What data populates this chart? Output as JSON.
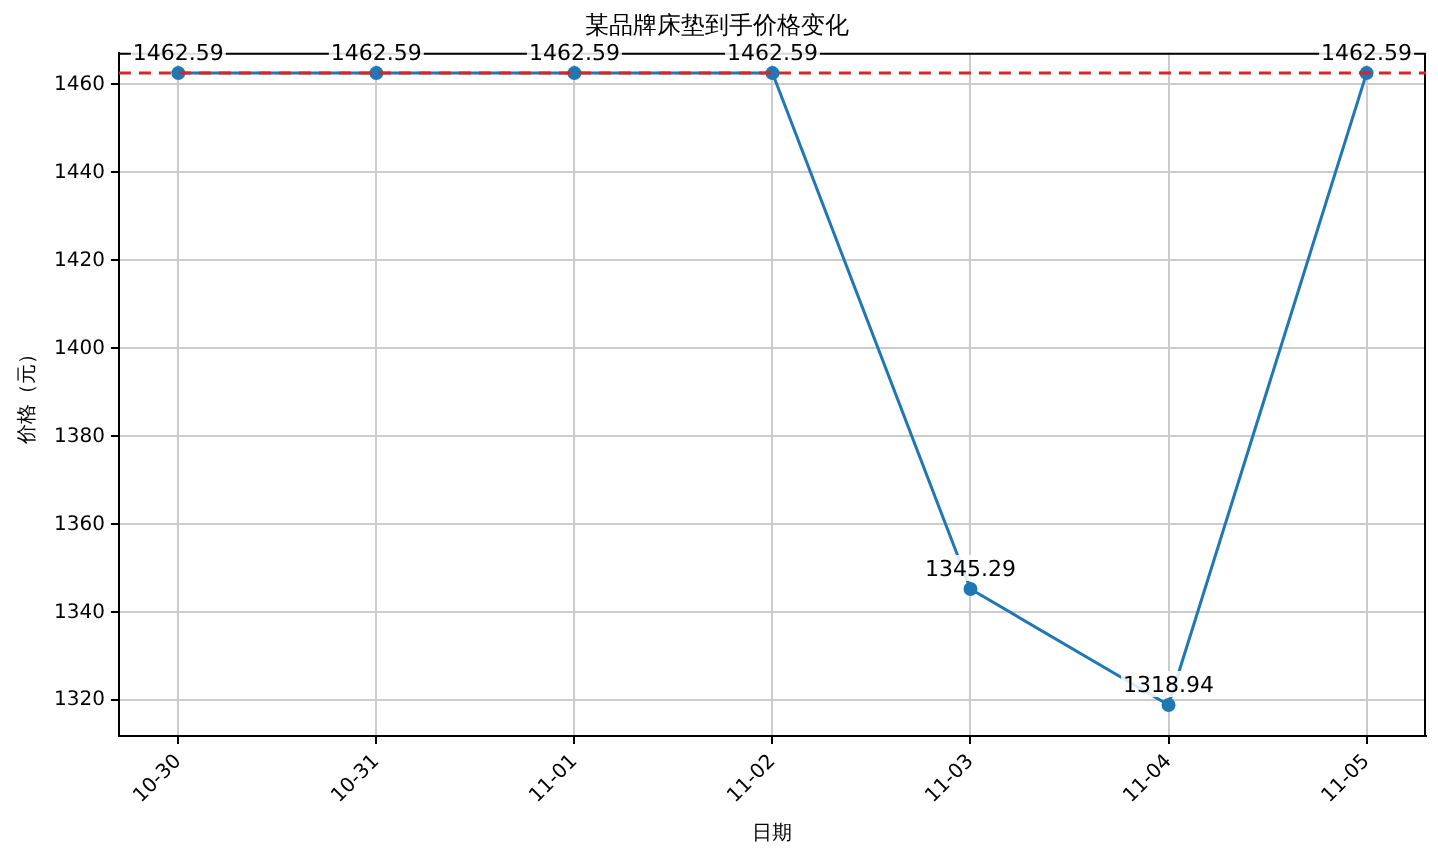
{
  "chart_data": {
    "type": "line",
    "title": "某品牌床垫到手价格变化",
    "xlabel": "日期",
    "ylabel": "价格（元）",
    "categories": [
      "10-30",
      "10-31",
      "11-01",
      "11-02",
      "11-03",
      "11-04",
      "11-05"
    ],
    "series": [
      {
        "color": "#1f77b4",
        "values": [
          1462.59,
          1462.59,
          1462.59,
          1462.59,
          1345.29,
          1318.94,
          1462.59
        ]
      }
    ],
    "ylim": [
      1311.9,
      1467.2
    ],
    "yticks": [
      1320,
      1340,
      1360,
      1380,
      1400,
      1420,
      1440,
      1460
    ],
    "ref_lines": [
      {
        "axis": "y",
        "value": 1462.59,
        "color": "#d62728",
        "line_style": "dashed"
      }
    ],
    "data_labels": true,
    "grid": true,
    "marker": "circle",
    "line_style": "solid",
    "legend": false
  }
}
